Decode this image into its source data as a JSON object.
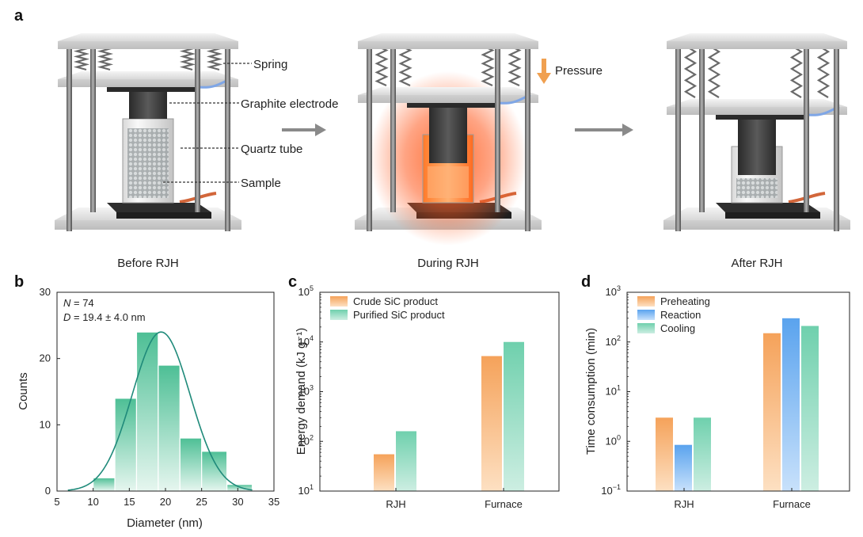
{
  "panel_a": {
    "label": "a",
    "captions": [
      "Before RJH",
      "During RJH",
      "After RJH"
    ],
    "annotations": {
      "spring": "Spring",
      "electrode": "Graphite electrode",
      "tube": "Quartz tube",
      "sample": "Sample",
      "pressure": "Pressure"
    },
    "colors": {
      "glow": "#ff5a1f",
      "pressure_arrow": "#f0a050",
      "arrow": "#8a8a8a"
    }
  },
  "chart_data": [
    {
      "id": "b",
      "panel_label": "b",
      "type": "bar",
      "subtype": "histogram",
      "bins": [
        [
          10,
          13
        ],
        [
          13,
          16
        ],
        [
          16,
          19
        ],
        [
          19,
          22
        ],
        [
          22,
          25
        ],
        [
          25,
          28.5
        ],
        [
          28.5,
          32
        ]
      ],
      "values": [
        2,
        14,
        24,
        19,
        8,
        6,
        1
      ],
      "fit_curve": {
        "type": "gaussian",
        "mean": 19.4,
        "sd": 4.0,
        "peak": 24
      },
      "stats": {
        "n_prefix": "N",
        "n_value": " = 74",
        "d_prefix": "D",
        "d_value": " = 19.4 ± 4.0 nm"
      },
      "xlabel": "Diameter (nm)",
      "ylabel": "Counts",
      "xlim": [
        5,
        35
      ],
      "ylim": [
        0,
        30
      ],
      "xticks": [
        5,
        10,
        15,
        20,
        25,
        30,
        35
      ],
      "yticks": [
        0,
        10,
        20,
        30
      ],
      "colors": {
        "bar": "#4dbf95",
        "bar_light": "#e6f6ef",
        "curve": "#1f8a7a"
      }
    },
    {
      "id": "c",
      "panel_label": "c",
      "type": "bar",
      "yscale": "log",
      "categories": [
        "RJH",
        "Furnace"
      ],
      "series": [
        {
          "name": "Crude SiC product",
          "values": [
            55,
            5200
          ],
          "color": "#f5a25a"
        },
        {
          "name": "Purified SiC product",
          "values": [
            160,
            10000
          ],
          "color": "#6fd0ad"
        }
      ],
      "ylabel": "Energy demand (kJ g⁻¹)",
      "ylim": [
        10,
        100000
      ],
      "yticks": [
        {
          "base": "10",
          "exp": "1"
        },
        {
          "base": "10",
          "exp": "2"
        },
        {
          "base": "10",
          "exp": "3"
        },
        {
          "base": "10",
          "exp": "4"
        },
        {
          "base": "10",
          "exp": "5"
        }
      ],
      "legend": "top-left"
    },
    {
      "id": "d",
      "panel_label": "d",
      "type": "bar",
      "yscale": "log",
      "categories": [
        "RJH",
        "Furnace"
      ],
      "series": [
        {
          "name": "Preheating",
          "values": [
            3,
            150
          ],
          "color": "#f5a25a"
        },
        {
          "name": "Reaction",
          "values": [
            0.85,
            300
          ],
          "color": "#5aa3ee"
        },
        {
          "name": "Cooling",
          "values": [
            3,
            210
          ],
          "color": "#6fd0ad"
        }
      ],
      "ylabel": "Time consumption (min)",
      "ylim": [
        0.1,
        1000
      ],
      "yticks": [
        {
          "base": "10",
          "exp": "−1"
        },
        {
          "base": "10",
          "exp": "0"
        },
        {
          "base": "10",
          "exp": "1"
        },
        {
          "base": "10",
          "exp": "2"
        },
        {
          "base": "10",
          "exp": "3"
        }
      ],
      "legend": "top-left"
    }
  ]
}
